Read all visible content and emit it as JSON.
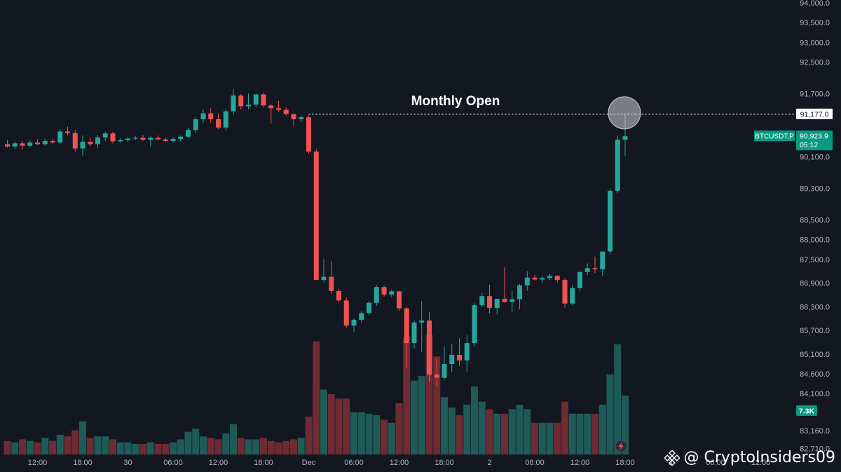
{
  "chart_data": {
    "type": "candlestick",
    "symbol_label": "BTCUSDT.P",
    "last_price_label": "90,923.9",
    "countdown_label": "05:12",
    "monthly_open_value": 91177.0,
    "monthly_open_label": "91,177.0",
    "annotation": "Monthly Open",
    "volume_label": "7.3K",
    "volume_current": 7300,
    "ylim": [
      82700,
      94000
    ],
    "y_ticks": [
      {
        "value": 94000,
        "label": "94,000.0"
      },
      {
        "value": 93500,
        "label": "93,500.0"
      },
      {
        "value": 93000,
        "label": "93,000.0"
      },
      {
        "value": 92500,
        "label": "92,500.0"
      },
      {
        "value": 91700,
        "label": "91,700.0"
      },
      {
        "value": 90100,
        "label": "90,100.0"
      },
      {
        "value": 89300,
        "label": "89,300.0"
      },
      {
        "value": 88500,
        "label": "88,500.0"
      },
      {
        "value": 88000,
        "label": "88,000.0"
      },
      {
        "value": 87500,
        "label": "87,500.0"
      },
      {
        "value": 86900,
        "label": "86,900.0"
      },
      {
        "value": 86300,
        "label": "86,300.0"
      },
      {
        "value": 85700,
        "label": "85,700.0"
      },
      {
        "value": 85100,
        "label": "85,100.0"
      },
      {
        "value": 84600,
        "label": "84,600.0"
      },
      {
        "value": 84100,
        "label": "84,100.0"
      },
      {
        "value": 83160,
        "label": "83,160.0"
      },
      {
        "value": 82710,
        "label": "82,710.0"
      }
    ],
    "x_ticks": [
      {
        "index": 4,
        "label": "12:00"
      },
      {
        "index": 10,
        "label": "18:00"
      },
      {
        "index": 16,
        "label": "30"
      },
      {
        "index": 22,
        "label": "06:00"
      },
      {
        "index": 28,
        "label": "12:00"
      },
      {
        "index": 34,
        "label": "18:00"
      },
      {
        "index": 40,
        "label": "Dec"
      },
      {
        "index": 46,
        "label": "06:00"
      },
      {
        "index": 52,
        "label": "12:00"
      },
      {
        "index": 58,
        "label": "18:00"
      },
      {
        "index": 64,
        "label": "2"
      },
      {
        "index": 70,
        "label": "06:00"
      },
      {
        "index": 76,
        "label": "12:00"
      },
      {
        "index": 82,
        "label": "18:00"
      },
      {
        "index": 88,
        "label": "3"
      },
      {
        "index": 94,
        "label": "06:00"
      },
      {
        "index": 100,
        "label": "12:00"
      }
    ],
    "candles": [
      {
        "o": 90420,
        "h": 90520,
        "l": 90330,
        "c": 90360,
        "v": 900
      },
      {
        "o": 90360,
        "h": 90480,
        "l": 90300,
        "c": 90440,
        "v": 800
      },
      {
        "o": 90440,
        "h": 90500,
        "l": 90280,
        "c": 90380,
        "v": 1000
      },
      {
        "o": 90380,
        "h": 90510,
        "l": 90330,
        "c": 90460,
        "v": 900
      },
      {
        "o": 90460,
        "h": 90540,
        "l": 90400,
        "c": 90420,
        "v": 800
      },
      {
        "o": 90420,
        "h": 90560,
        "l": 90380,
        "c": 90500,
        "v": 1100
      },
      {
        "o": 90500,
        "h": 90560,
        "l": 90430,
        "c": 90460,
        "v": 900
      },
      {
        "o": 90460,
        "h": 90800,
        "l": 90420,
        "c": 90740,
        "v": 1300
      },
      {
        "o": 90740,
        "h": 90860,
        "l": 90640,
        "c": 90700,
        "v": 1200
      },
      {
        "o": 90700,
        "h": 90780,
        "l": 90240,
        "c": 90310,
        "v": 1600
      },
      {
        "o": 90310,
        "h": 90640,
        "l": 90120,
        "c": 90480,
        "v": 2200
      },
      {
        "o": 90480,
        "h": 90580,
        "l": 90370,
        "c": 90420,
        "v": 1100
      },
      {
        "o": 90420,
        "h": 90650,
        "l": 90320,
        "c": 90590,
        "v": 1200
      },
      {
        "o": 90590,
        "h": 90740,
        "l": 90500,
        "c": 90690,
        "v": 1200
      },
      {
        "o": 90690,
        "h": 90730,
        "l": 90440,
        "c": 90490,
        "v": 1000
      },
      {
        "o": 90490,
        "h": 90570,
        "l": 90460,
        "c": 90520,
        "v": 800
      },
      {
        "o": 90520,
        "h": 90600,
        "l": 90480,
        "c": 90560,
        "v": 800
      },
      {
        "o": 90560,
        "h": 90620,
        "l": 90520,
        "c": 90580,
        "v": 700
      },
      {
        "o": 90580,
        "h": 90650,
        "l": 90500,
        "c": 90530,
        "v": 700
      },
      {
        "o": 90530,
        "h": 90620,
        "l": 90350,
        "c": 90580,
        "v": 800
      },
      {
        "o": 90580,
        "h": 90640,
        "l": 90510,
        "c": 90540,
        "v": 700
      },
      {
        "o": 90540,
        "h": 90580,
        "l": 90470,
        "c": 90500,
        "v": 700
      },
      {
        "o": 90500,
        "h": 90600,
        "l": 90460,
        "c": 90550,
        "v": 800
      },
      {
        "o": 90550,
        "h": 90640,
        "l": 90500,
        "c": 90610,
        "v": 1000
      },
      {
        "o": 90610,
        "h": 90840,
        "l": 90570,
        "c": 90780,
        "v": 1500
      },
      {
        "o": 90780,
        "h": 91100,
        "l": 90700,
        "c": 91050,
        "v": 1700
      },
      {
        "o": 91050,
        "h": 91300,
        "l": 90950,
        "c": 91200,
        "v": 1200
      },
      {
        "o": 91200,
        "h": 91330,
        "l": 90950,
        "c": 91050,
        "v": 1100
      },
      {
        "o": 91050,
        "h": 91200,
        "l": 90800,
        "c": 90840,
        "v": 1000
      },
      {
        "o": 90840,
        "h": 91300,
        "l": 90780,
        "c": 91250,
        "v": 1400
      },
      {
        "o": 91250,
        "h": 91820,
        "l": 91150,
        "c": 91650,
        "v": 2000
      },
      {
        "o": 91650,
        "h": 91690,
        "l": 91300,
        "c": 91380,
        "v": 1100
      },
      {
        "o": 91380,
        "h": 91700,
        "l": 91300,
        "c": 91420,
        "v": 1000
      },
      {
        "o": 91420,
        "h": 91700,
        "l": 91350,
        "c": 91680,
        "v": 1000
      },
      {
        "o": 91680,
        "h": 91720,
        "l": 91350,
        "c": 91400,
        "v": 1100
      },
      {
        "o": 91400,
        "h": 91430,
        "l": 90940,
        "c": 91330,
        "v": 900
      },
      {
        "o": 91330,
        "h": 91520,
        "l": 91240,
        "c": 91290,
        "v": 800
      },
      {
        "o": 91290,
        "h": 91350,
        "l": 91140,
        "c": 91180,
        "v": 900
      },
      {
        "o": 91180,
        "h": 91200,
        "l": 90900,
        "c": 91050,
        "v": 1000
      },
      {
        "o": 91050,
        "h": 91150,
        "l": 90980,
        "c": 91100,
        "v": 1100
      },
      {
        "o": 91100,
        "h": 91150,
        "l": 90180,
        "c": 90230,
        "v": 2500
      },
      {
        "o": 90230,
        "h": 90300,
        "l": 86980,
        "c": 86980,
        "v": 7500
      },
      {
        "o": 86980,
        "h": 87500,
        "l": 86920,
        "c": 87060,
        "v": 4300
      },
      {
        "o": 87060,
        "h": 87460,
        "l": 86630,
        "c": 86700,
        "v": 4000
      },
      {
        "o": 86700,
        "h": 86760,
        "l": 86410,
        "c": 86460,
        "v": 3700
      },
      {
        "o": 86460,
        "h": 86530,
        "l": 85770,
        "c": 85820,
        "v": 3700
      },
      {
        "o": 85820,
        "h": 86000,
        "l": 85650,
        "c": 85970,
        "v": 2800
      },
      {
        "o": 85970,
        "h": 86190,
        "l": 85910,
        "c": 86140,
        "v": 2800
      },
      {
        "o": 86140,
        "h": 86450,
        "l": 86100,
        "c": 86400,
        "v": 2700
      },
      {
        "o": 86400,
        "h": 86850,
        "l": 86330,
        "c": 86800,
        "v": 2600
      },
      {
        "o": 86800,
        "h": 86840,
        "l": 86560,
        "c": 86610,
        "v": 2300
      },
      {
        "o": 86610,
        "h": 86740,
        "l": 86550,
        "c": 86690,
        "v": 2100
      },
      {
        "o": 86690,
        "h": 86710,
        "l": 86200,
        "c": 86260,
        "v": 3400
      },
      {
        "o": 86260,
        "h": 86300,
        "l": 84740,
        "c": 85380,
        "v": 7800
      },
      {
        "o": 85380,
        "h": 85950,
        "l": 85240,
        "c": 85900,
        "v": 4900
      },
      {
        "o": 85900,
        "h": 86450,
        "l": 85150,
        "c": 85950,
        "v": 5200
      },
      {
        "o": 85950,
        "h": 86170,
        "l": 84400,
        "c": 84580,
        "v": 7900
      },
      {
        "o": 84580,
        "h": 85000,
        "l": 84280,
        "c": 84500,
        "v": 6500
      },
      {
        "o": 84500,
        "h": 85300,
        "l": 84460,
        "c": 84850,
        "v": 3800
      },
      {
        "o": 84850,
        "h": 85360,
        "l": 84650,
        "c": 85080,
        "v": 3100
      },
      {
        "o": 85080,
        "h": 85500,
        "l": 84800,
        "c": 84940,
        "v": 2600
      },
      {
        "o": 84940,
        "h": 85580,
        "l": 84650,
        "c": 85380,
        "v": 3300
      },
      {
        "o": 85380,
        "h": 86390,
        "l": 85300,
        "c": 86340,
        "v": 4500
      },
      {
        "o": 86340,
        "h": 86650,
        "l": 86280,
        "c": 86570,
        "v": 3500
      },
      {
        "o": 86570,
        "h": 86860,
        "l": 86140,
        "c": 86270,
        "v": 3000
      },
      {
        "o": 86270,
        "h": 86500,
        "l": 86100,
        "c": 86500,
        "v": 2700
      },
      {
        "o": 86500,
        "h": 87300,
        "l": 86400,
        "c": 86420,
        "v": 2700
      },
      {
        "o": 86420,
        "h": 86700,
        "l": 86170,
        "c": 86490,
        "v": 3000
      },
      {
        "o": 86490,
        "h": 86880,
        "l": 86240,
        "c": 86840,
        "v": 3300
      },
      {
        "o": 86840,
        "h": 87200,
        "l": 86700,
        "c": 87040,
        "v": 3000
      },
      {
        "o": 87040,
        "h": 87110,
        "l": 86960,
        "c": 86990,
        "v": 2100
      },
      {
        "o": 86990,
        "h": 87080,
        "l": 86910,
        "c": 87030,
        "v": 2100
      },
      {
        "o": 87030,
        "h": 87130,
        "l": 86980,
        "c": 87080,
        "v": 2100
      },
      {
        "o": 87080,
        "h": 87100,
        "l": 86900,
        "c": 86980,
        "v": 2100
      },
      {
        "o": 86980,
        "h": 87020,
        "l": 86280,
        "c": 86380,
        "v": 3500
      },
      {
        "o": 86380,
        "h": 86850,
        "l": 86340,
        "c": 86770,
        "v": 2700
      },
      {
        "o": 86770,
        "h": 87200,
        "l": 86680,
        "c": 87180,
        "v": 2700
      },
      {
        "o": 87180,
        "h": 87400,
        "l": 87100,
        "c": 87280,
        "v": 2700
      },
      {
        "o": 87280,
        "h": 87570,
        "l": 87160,
        "c": 87250,
        "v": 2700
      },
      {
        "o": 87250,
        "h": 87650,
        "l": 87080,
        "c": 87700,
        "v": 3300
      },
      {
        "o": 87700,
        "h": 89300,
        "l": 87640,
        "c": 89240,
        "v": 5300
      },
      {
        "o": 89240,
        "h": 90630,
        "l": 89180,
        "c": 90530,
        "v": 7300
      },
      {
        "o": 90530,
        "h": 91180,
        "l": 90120,
        "c": 90620,
        "v": 3900
      }
    ]
  },
  "watermark": {
    "handle": "@ CryptoInsiders09",
    "logo_icon": "binance-logo-icon"
  },
  "colors": {
    "background": "#131722",
    "up": "#26a69a",
    "down": "#ef5350",
    "volume_up": "#1e5a58",
    "volume_down": "#6e2b32",
    "axis_text": "#b2b5be",
    "tag_green": "#089981"
  }
}
